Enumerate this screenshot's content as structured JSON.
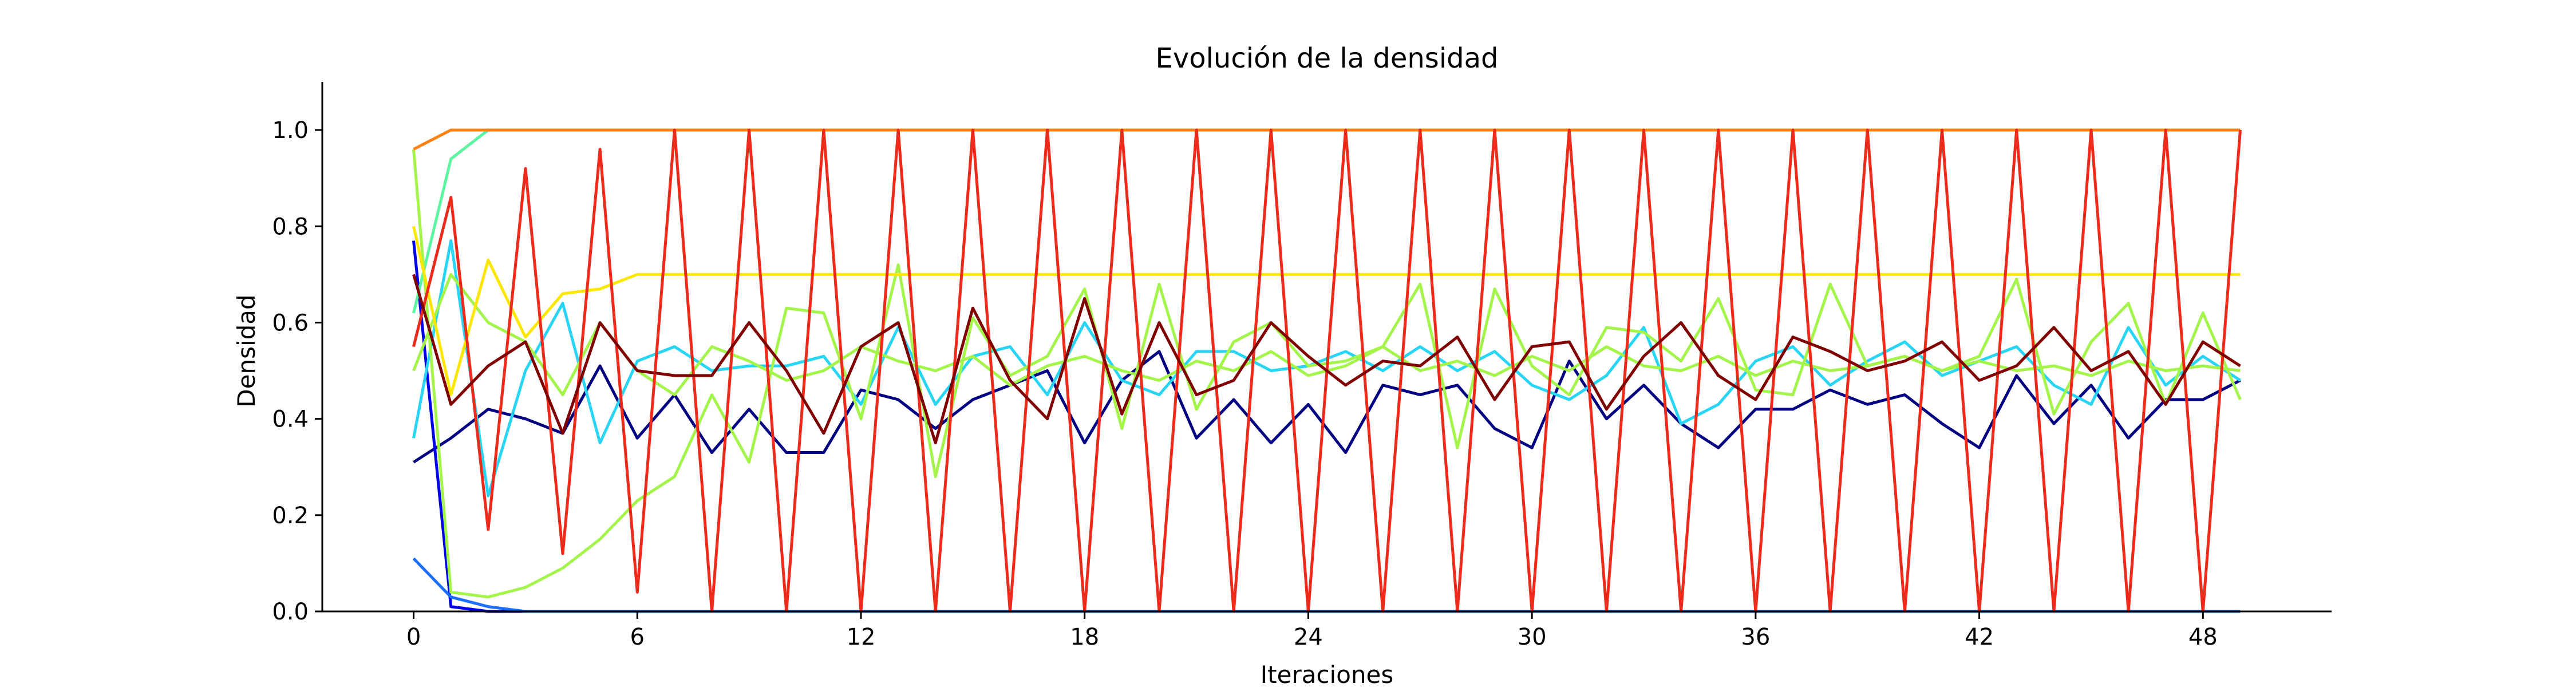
{
  "chart_data": {
    "type": "line",
    "title": "Evolución de la densidad",
    "xlabel": "Iteraciones",
    "ylabel": "Densidad",
    "xlim": [
      -2.45,
      51.45
    ],
    "ylim": [
      0,
      1.1
    ],
    "xticks": [
      0,
      6,
      12,
      18,
      24,
      30,
      36,
      42,
      48
    ],
    "yticks": [
      0.0,
      0.2,
      0.4,
      0.6,
      0.8,
      1.0
    ],
    "xtick_labels": [
      "0",
      "6",
      "12",
      "18",
      "24",
      "30",
      "36",
      "42",
      "48"
    ],
    "ytick_labels": [
      "0.0",
      "0.2",
      "0.4",
      "0.6",
      "0.8",
      "1.0"
    ],
    "grid": false,
    "x": [
      0,
      1,
      2,
      3,
      4,
      5,
      6,
      7,
      8,
      9,
      10,
      11,
      12,
      13,
      14,
      15,
      16,
      17,
      18,
      19,
      20,
      21,
      22,
      23,
      24,
      25,
      26,
      27,
      28,
      29,
      30,
      31,
      32,
      33,
      34,
      35,
      36,
      37,
      38,
      39,
      40,
      41,
      42,
      43,
      44,
      45,
      46,
      47,
      48,
      49
    ],
    "series": [
      {
        "color": "#000080",
        "values": [
          0.31,
          0.36,
          0.42,
          0.4,
          0.37,
          0.51,
          0.36,
          0.45,
          0.33,
          0.42,
          0.33,
          0.33,
          0.46,
          0.44,
          0.38,
          0.44,
          0.47,
          0.5,
          0.35,
          0.48,
          0.54,
          0.36,
          0.44,
          0.35,
          0.43,
          0.33,
          0.47,
          0.45,
          0.47,
          0.38,
          0.34,
          0.52,
          0.4,
          0.47,
          0.39,
          0.34,
          0.42,
          0.42,
          0.46,
          0.43,
          0.45,
          0.39,
          0.34,
          0.49,
          0.39,
          0.47,
          0.36,
          0.44,
          0.44,
          0.48
        ]
      },
      {
        "color": "#0000ee",
        "values": [
          0.77,
          0.01,
          0,
          0,
          0,
          0,
          0,
          0,
          0,
          0,
          0,
          0,
          0,
          0,
          0,
          0,
          0,
          0,
          0,
          0,
          0,
          0,
          0,
          0,
          0,
          0,
          0,
          0,
          0,
          0,
          0,
          0,
          0,
          0,
          0,
          0,
          0,
          0,
          0,
          0,
          0,
          0,
          0,
          0,
          0,
          0,
          0,
          0,
          0,
          0
        ]
      },
      {
        "color": "#1c6eff",
        "values": [
          0.11,
          0.03,
          0.01,
          0,
          0,
          0,
          0,
          0,
          0,
          0,
          0,
          0,
          0,
          0,
          0,
          0,
          0,
          0,
          0,
          0,
          0,
          0,
          0,
          0,
          0,
          0,
          0,
          0,
          0,
          0,
          0,
          0,
          0,
          0,
          0,
          0,
          0,
          0,
          0,
          0,
          0,
          0,
          0,
          0,
          0,
          0,
          0,
          0,
          0,
          0
        ]
      },
      {
        "color": "#29d5f5",
        "values": [
          0.36,
          0.77,
          0.24,
          0.5,
          0.64,
          0.35,
          0.52,
          0.55,
          0.5,
          0.51,
          0.51,
          0.53,
          0.43,
          0.59,
          0.43,
          0.53,
          0.55,
          0.45,
          0.6,
          0.48,
          0.45,
          0.54,
          0.54,
          0.5,
          0.51,
          0.54,
          0.5,
          0.55,
          0.5,
          0.54,
          0.47,
          0.44,
          0.49,
          0.59,
          0.39,
          0.43,
          0.52,
          0.55,
          0.47,
          0.52,
          0.56,
          0.49,
          0.52,
          0.55,
          0.47,
          0.43,
          0.59,
          0.47,
          0.53,
          0.48
        ]
      },
      {
        "color": "#5cf5a2",
        "values": [
          0.62,
          0.94,
          1.0,
          1.0,
          1.0,
          1.0,
          1.0,
          1.0,
          1.0,
          1.0,
          1.0,
          1.0,
          1.0,
          1.0,
          1.0,
          1.0,
          1.0,
          1.0,
          1.0,
          1.0,
          1.0,
          1.0,
          1.0,
          1.0,
          1.0,
          1.0,
          1.0,
          1.0,
          1.0,
          1.0,
          1.0,
          1.0,
          1.0,
          1.0,
          1.0,
          1.0,
          1.0,
          1.0,
          1.0,
          1.0,
          1.0,
          1.0,
          1.0,
          1.0,
          1.0,
          1.0,
          1.0,
          1.0,
          1.0,
          1.0
        ]
      },
      {
        "color": "#a4f54a",
        "values": [
          0.96,
          0.04,
          0.03,
          0.05,
          0.09,
          0.15,
          0.23,
          0.28,
          0.45,
          0.31,
          0.63,
          0.62,
          0.4,
          0.72,
          0.28,
          0.61,
          0.49,
          0.53,
          0.67,
          0.38,
          0.68,
          0.42,
          0.56,
          0.6,
          0.51,
          0.52,
          0.55,
          0.68,
          0.34,
          0.67,
          0.51,
          0.45,
          0.59,
          0.58,
          0.52,
          0.65,
          0.46,
          0.45,
          0.68,
          0.51,
          0.53,
          0.5,
          0.53,
          0.69,
          0.41,
          0.56,
          0.64,
          0.43,
          0.62,
          0.44
        ]
      },
      {
        "color": "#a4f54a",
        "values": [
          0.5,
          0.7,
          0.6,
          0.56,
          0.45,
          0.6,
          0.5,
          0.45,
          0.55,
          0.52,
          0.48,
          0.5,
          0.55,
          0.52,
          0.5,
          0.53,
          0.47,
          0.51,
          0.53,
          0.5,
          0.48,
          0.52,
          0.5,
          0.54,
          0.49,
          0.51,
          0.55,
          0.5,
          0.52,
          0.49,
          0.53,
          0.5,
          0.55,
          0.51,
          0.5,
          0.53,
          0.49,
          0.52,
          0.5,
          0.51,
          0.53,
          0.5,
          0.52,
          0.5,
          0.51,
          0.49,
          0.52,
          0.5,
          0.51,
          0.5
        ]
      },
      {
        "color": "#fde600",
        "values": [
          0.8,
          0.45,
          0.73,
          0.57,
          0.66,
          0.67,
          0.7,
          0.7,
          0.7,
          0.7,
          0.7,
          0.7,
          0.7,
          0.7,
          0.7,
          0.7,
          0.7,
          0.7,
          0.7,
          0.7,
          0.7,
          0.7,
          0.7,
          0.7,
          0.7,
          0.7,
          0.7,
          0.7,
          0.7,
          0.7,
          0.7,
          0.7,
          0.7,
          0.7,
          0.7,
          0.7,
          0.7,
          0.7,
          0.7,
          0.7,
          0.7,
          0.7,
          0.7,
          0.7,
          0.7,
          0.7,
          0.7,
          0.7,
          0.7,
          0.7
        ]
      },
      {
        "color": "#ff8013",
        "values": [
          0.96,
          1.0,
          1.0,
          1.0,
          1.0,
          1.0,
          1.0,
          1.0,
          1.0,
          1.0,
          1.0,
          1.0,
          1.0,
          1.0,
          1.0,
          1.0,
          1.0,
          1.0,
          1.0,
          1.0,
          1.0,
          1.0,
          1.0,
          1.0,
          1.0,
          1.0,
          1.0,
          1.0,
          1.0,
          1.0,
          1.0,
          1.0,
          1.0,
          1.0,
          1.0,
          1.0,
          1.0,
          1.0,
          1.0,
          1.0,
          1.0,
          1.0,
          1.0,
          1.0,
          1.0,
          1.0,
          1.0,
          1.0,
          1.0,
          1.0
        ]
      },
      {
        "color": "#ee2a1a",
        "values": [
          0.55,
          0.86,
          0.17,
          0.92,
          0.12,
          0.96,
          0.04,
          1.0,
          0,
          1.0,
          0,
          1.0,
          0,
          1.0,
          0,
          1.0,
          0,
          1.0,
          0,
          1.0,
          0,
          1.0,
          0,
          1.0,
          0,
          1.0,
          0,
          1.0,
          0,
          1.0,
          0,
          1.0,
          0,
          1.0,
          0,
          1.0,
          0,
          1.0,
          0,
          1.0,
          0,
          1.0,
          0,
          1.0,
          0,
          1.0,
          0,
          1.0,
          0,
          1.0
        ]
      },
      {
        "color": "#800000",
        "values": [
          0.7,
          0.43,
          0.51,
          0.56,
          0.37,
          0.6,
          0.5,
          0.49,
          0.49,
          0.6,
          0.5,
          0.37,
          0.55,
          0.6,
          0.35,
          0.63,
          0.48,
          0.4,
          0.65,
          0.41,
          0.6,
          0.45,
          0.48,
          0.6,
          0.53,
          0.47,
          0.52,
          0.51,
          0.57,
          0.44,
          0.55,
          0.56,
          0.42,
          0.53,
          0.6,
          0.49,
          0.44,
          0.57,
          0.54,
          0.5,
          0.52,
          0.56,
          0.48,
          0.51,
          0.59,
          0.5,
          0.54,
          0.43,
          0.56,
          0.51
        ]
      }
    ]
  }
}
